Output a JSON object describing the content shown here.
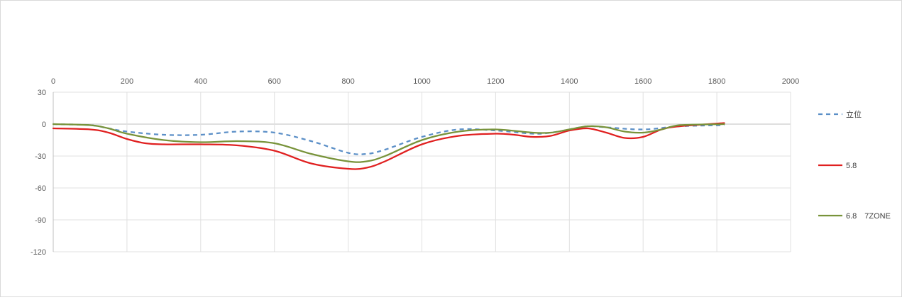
{
  "chart_data": {
    "type": "line",
    "xlim": [
      0,
      2000
    ],
    "ylim": [
      -120,
      30
    ],
    "x_ticks": [
      0,
      200,
      400,
      600,
      800,
      1000,
      1200,
      1400,
      1600,
      1800,
      2000
    ],
    "y_ticks": [
      30,
      0,
      -30,
      -60,
      -90,
      -120
    ],
    "x_axis_position": "top",
    "grid": true,
    "legend_position": "right",
    "series": [
      {
        "name": "立位",
        "color": "#5b8fc7",
        "dashed": true,
        "x": [
          0,
          100,
          150,
          200,
          300,
          400,
          500,
          600,
          700,
          800,
          850,
          900,
          1000,
          1100,
          1200,
          1300,
          1350,
          1400,
          1450,
          1500,
          1600,
          1700,
          1820
        ],
        "y": [
          0,
          -1,
          -4,
          -7,
          -10,
          -10,
          -7,
          -8,
          -16,
          -27,
          -28,
          -24,
          -12,
          -5,
          -6,
          -9,
          -8,
          -5,
          -2,
          -3,
          -5,
          -2,
          -1
        ]
      },
      {
        "name": "5.8",
        "color": "#e02020",
        "dashed": false,
        "x": [
          0,
          100,
          150,
          200,
          250,
          300,
          400,
          500,
          600,
          700,
          800,
          850,
          900,
          1000,
          1100,
          1200,
          1250,
          1300,
          1350,
          1400,
          1450,
          1500,
          1550,
          1600,
          1650,
          1700,
          1820
        ],
        "y": [
          -4,
          -5,
          -8,
          -14,
          -18,
          -19,
          -19,
          -20,
          -25,
          -37,
          -42,
          -41,
          -35,
          -19,
          -11,
          -9,
          -10,
          -12,
          -11,
          -6,
          -4,
          -8,
          -13,
          -12,
          -5,
          -2,
          1
        ]
      },
      {
        "name": "6.8　7ZONE",
        "color": "#78933a",
        "dashed": false,
        "x": [
          0,
          100,
          150,
          200,
          300,
          400,
          500,
          600,
          700,
          800,
          850,
          900,
          1000,
          1100,
          1200,
          1300,
          1350,
          1400,
          1450,
          1500,
          1550,
          1600,
          1650,
          1700,
          1820
        ],
        "y": [
          0,
          -1,
          -4,
          -9,
          -15,
          -17,
          -16,
          -18,
          -28,
          -35,
          -35,
          -30,
          -15,
          -7,
          -5,
          -8,
          -8,
          -5,
          -2,
          -3,
          -7,
          -8,
          -5,
          -1,
          0
        ]
      }
    ]
  }
}
